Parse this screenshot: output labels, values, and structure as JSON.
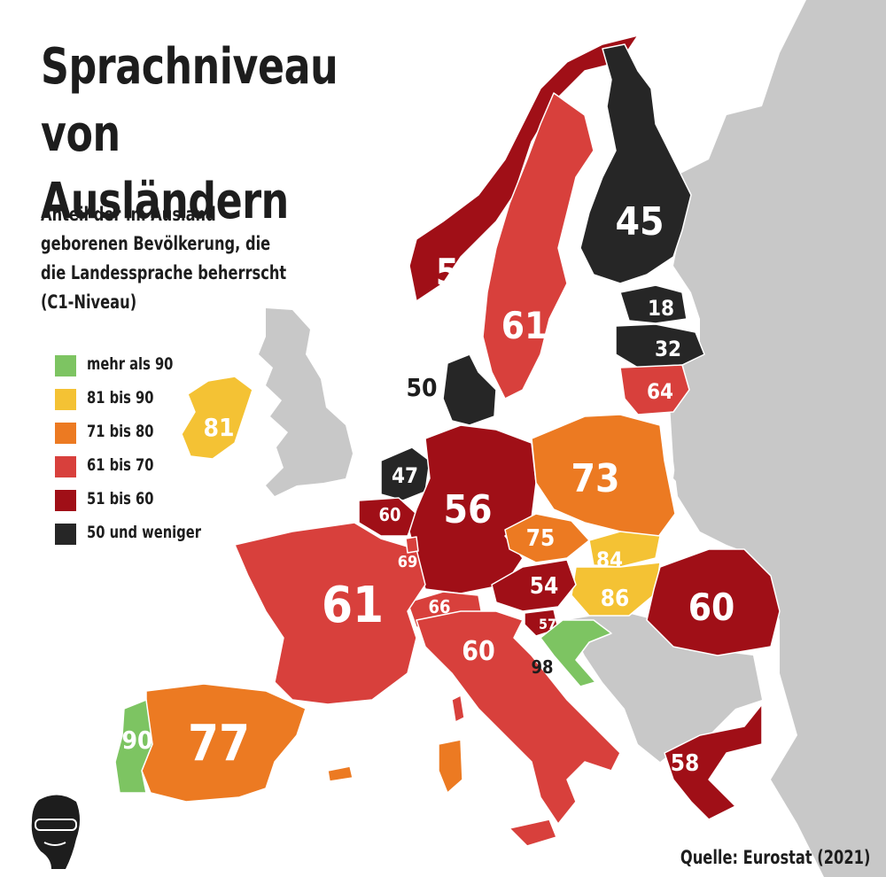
{
  "title": "Sprachniveau von Ausländern",
  "subtitle": "Anteil der im Ausland geborenen Bevölkerung, die die Landessprache beherrscht (C1-Niveau)",
  "source": "Quelle: Eurostat (2021)",
  "colors": {
    "more_than_90": "#7dc462",
    "81_to_90": "#f4c234",
    "71_to_80": "#ec7a22",
    "61_to_70": "#d8403c",
    "51_to_60": "#a00f17",
    "50_or_less": "#262626",
    "no_data": "#c8c8c8"
  },
  "legend": [
    {
      "label": "mehr als 90",
      "color": "#7dc462"
    },
    {
      "label": "81 bis 90",
      "color": "#f4c234"
    },
    {
      "label": "71 bis 80",
      "color": "#ec7a22"
    },
    {
      "label": "61 bis 70",
      "color": "#d8403c"
    },
    {
      "label": "51 bis 60",
      "color": "#a00f17"
    },
    {
      "label": "50 und weniger",
      "color": "#262626"
    }
  ],
  "values": {
    "finland": "45",
    "norway": "57",
    "sweden": "61",
    "estonia": "18",
    "latvia": "32",
    "lithuania": "64",
    "denmark": "50",
    "ireland": "81",
    "netherlands": "47",
    "belgium": "60",
    "luxembourg": "69",
    "germany": "56",
    "poland": "73",
    "czechia": "75",
    "slovakia": "84",
    "hungary": "86",
    "austria": "54",
    "slovenia": "57",
    "croatia": "98",
    "switzerland": "66",
    "france": "61",
    "italy": "60",
    "romania": "60",
    "greece": "58",
    "spain": "77",
    "portugal": "90"
  },
  "logo_icon": "face-with-sunglasses-logo"
}
